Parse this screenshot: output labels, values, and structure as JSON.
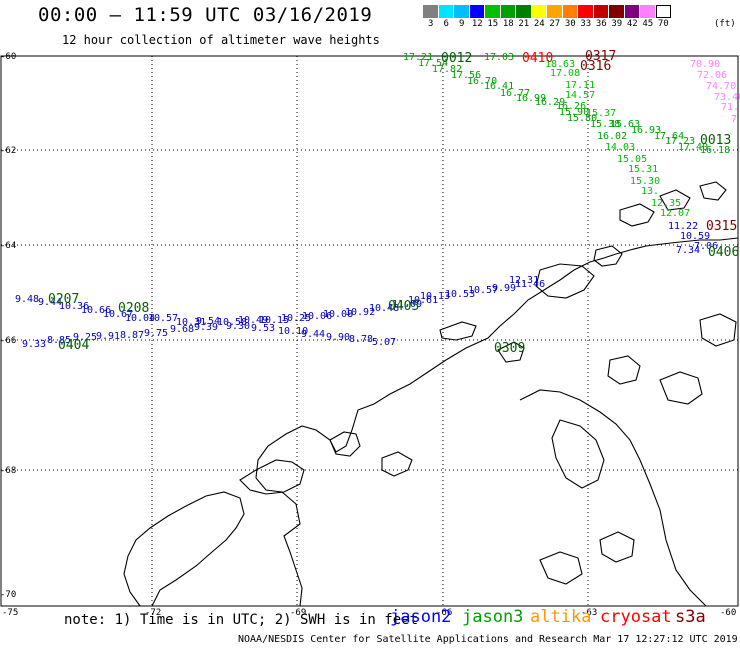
{
  "header": {
    "title": "00:00 – 11:59 UTC 03/16/2019",
    "subtitle": "12 hour collection of altimeter wave heights"
  },
  "color_scale": {
    "unit": "(ft)",
    "labels": [
      "3",
      "6",
      "9",
      "12",
      "15",
      "18",
      "21",
      "24",
      "27",
      "30",
      "33",
      "36",
      "39",
      "42",
      "45",
      "70"
    ],
    "colors": [
      "#808080",
      "#00e5ff",
      "#00bfff",
      "#0000ff",
      "#00c000",
      "#00a000",
      "#008000",
      "#ffff00",
      "#ffa500",
      "#ff8000",
      "#ff0000",
      "#c00000",
      "#800000",
      "#800080",
      "#ff80ff",
      "#ffffff"
    ]
  },
  "axes": {
    "lat_labels": [
      "-60",
      "-62",
      "-64",
      "-66",
      "-68",
      "-70"
    ],
    "lon_labels": [
      "-75",
      "-72",
      "-69",
      "-66",
      "-63",
      "-60"
    ]
  },
  "tracks": [
    {
      "name": "jason3-0012",
      "color": "#00a000",
      "time": "0012",
      "values": [
        "17.21",
        "17.54",
        "17.82",
        "17.03",
        "17.56",
        "16.70",
        "16.41",
        "16.77",
        "16.99",
        "16.29",
        "16.26",
        "15.90",
        "15.80",
        "15.38",
        "15.63",
        "16.02",
        "16.93",
        "17.64",
        "17.23",
        "17.40",
        "16.18"
      ]
    },
    {
      "name": "altika-0316",
      "color": "#00c000",
      "time": "",
      "values": [
        "18.63",
        "17.08",
        "17.11",
        "14.57",
        "15.37",
        "14.03",
        "15.05",
        "15.31",
        "15.30",
        "13.",
        "12.35",
        "12.07"
      ]
    },
    {
      "name": "jason2-0207",
      "color": "#0000c0",
      "time": "0207",
      "values": [
        "9.48",
        "9.44",
        "10.36",
        "10.66",
        "10.67",
        "10.04",
        "10.57",
        "10.31",
        "9.54",
        "10.58",
        "10.49",
        "10.15",
        "10.25",
        "10.06",
        "10.08",
        "10.92",
        "10.48",
        "11.09",
        "10.61",
        "10.13",
        "10.53",
        "10.57",
        "9.99",
        "11.46",
        "12.31"
      ]
    },
    {
      "name": "jason3-0404",
      "color": "#0000c0",
      "time": "0404",
      "values": [
        "9.33",
        "8.85",
        "9.25",
        "9.91",
        "8.87",
        "9.75",
        "9.68",
        "9.39",
        "9.30",
        "9.53",
        "10.10",
        "9.44",
        "9.90",
        "8.78",
        "5.07"
      ]
    },
    {
      "name": "s3a-0316",
      "color": "#ff80ff",
      "time": "",
      "values": [
        "70.90",
        "72.06",
        "74.70",
        "73.40",
        "71.",
        "7"
      ]
    },
    {
      "name": "altika-0315",
      "color": "#0000c0",
      "time": "",
      "values": [
        "11.22",
        "10.59",
        "7.34",
        "7.06"
      ]
    }
  ],
  "time_labels": [
    {
      "text": "0012",
      "color": "#006000"
    },
    {
      "text": "0410",
      "color": "#ff0000"
    },
    {
      "text": "0317",
      "color": "#800000"
    },
    {
      "text": "0316",
      "color": "#800000"
    },
    {
      "text": "0013",
      "color": "#006000"
    },
    {
      "text": "0315",
      "color": "#800000"
    },
    {
      "text": "0406",
      "color": "#006000"
    },
    {
      "text": "0207",
      "color": "#006000"
    },
    {
      "text": "0208",
      "color": "#006000"
    },
    {
      "text": "0405",
      "color": "#006000"
    },
    {
      "text": "0404",
      "color": "#006000"
    },
    {
      "text": "0309",
      "color": "#006000"
    }
  ],
  "footer": {
    "note": "note: 1) Time is in UTC; 2) SWH is in feet",
    "legend": [
      {
        "label": "jason2",
        "color": "#0000ff"
      },
      {
        "label": "jason3",
        "color": "#00a000"
      },
      {
        "label": "altika",
        "color": "#ff9900"
      },
      {
        "label": "cryosat",
        "color": "#ff0000"
      },
      {
        "label": "s3a",
        "color": "#800000"
      }
    ],
    "credits": "NOAA/NESDIS Center for Satellite Applications and Research   Mar 17 12:27:12 UTC 2019"
  }
}
